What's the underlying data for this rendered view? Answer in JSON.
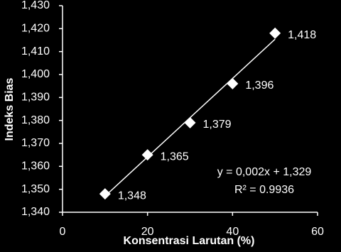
{
  "chart_data": {
    "type": "scatter",
    "y_label": "Indeks Bias",
    "x_label": "Konsentrasi Larutan (%)",
    "x": [
      10,
      20,
      30,
      40,
      50
    ],
    "series": [
      {
        "color": "#ffffff",
        "values": [
          1.348,
          1.365,
          1.379,
          1.396,
          1.418
        ],
        "value_labels": [
          "1,348",
          "1,365",
          "1,379",
          "1,396",
          "1,418"
        ]
      }
    ],
    "trendline": true,
    "annotations": [
      "y = 0,002x + 1,329",
      "R² = 0.9936"
    ],
    "xlim": [
      0,
      60
    ],
    "xticks": [
      0,
      20,
      40,
      60
    ],
    "ylim": [
      1.34,
      1.43
    ],
    "yticks": [
      {
        "value": 1.34,
        "label": "1,340"
      },
      {
        "value": 1.35,
        "label": "1,350"
      },
      {
        "value": 1.36,
        "label": "1,360"
      },
      {
        "value": 1.37,
        "label": "1,370"
      },
      {
        "value": 1.38,
        "label": "1,380"
      },
      {
        "value": 1.39,
        "label": "1,390"
      },
      {
        "value": 1.4,
        "label": "1,400"
      },
      {
        "value": 1.41,
        "label": "1,410"
      },
      {
        "value": 1.42,
        "label": "1,420"
      },
      {
        "value": 1.43,
        "label": "1,430"
      }
    ],
    "grid": false
  }
}
